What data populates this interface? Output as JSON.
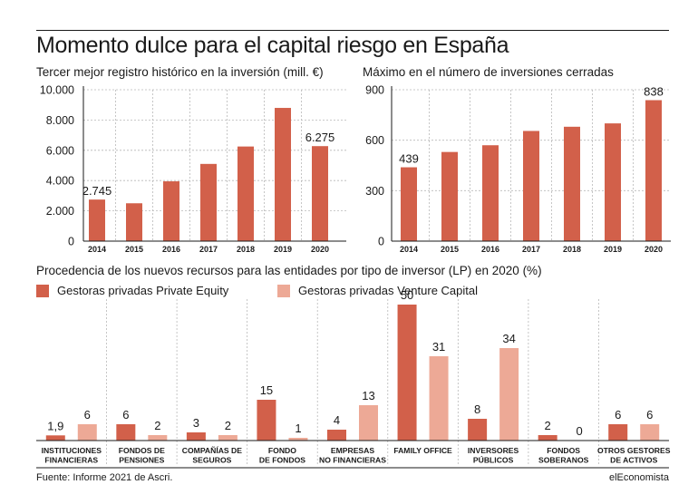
{
  "title": "Momento dulce para el capital riesgo en España",
  "source": "Fuente: Informe 2021 de Ascri.",
  "brand": "elEconomista",
  "colors": {
    "dark": "#d2604a",
    "light": "#eda996",
    "grid": "#b8b8b8",
    "text": "#1a1a1a"
  },
  "chart_data": [
    {
      "type": "bar",
      "title": "Tercer mejor registro histórico en la inversión (mill. €)",
      "categories": [
        "2014",
        "2015",
        "2016",
        "2017",
        "2018",
        "2019",
        "2020"
      ],
      "values": [
        2745,
        2500,
        3950,
        5100,
        6250,
        8800,
        6275
      ],
      "value_labels": [
        "2.745",
        "",
        "",
        "",
        "",
        "",
        "6.275"
      ],
      "ylim": [
        0,
        10000
      ],
      "yticks": [
        0,
        2000,
        4000,
        6000,
        8000,
        10000
      ],
      "ytick_labels": [
        "0",
        "2.000",
        "4.000",
        "6.000",
        "8.000",
        "10.000"
      ],
      "grid": true
    },
    {
      "type": "bar",
      "title": "Máximo en el número de inversiones cerradas",
      "categories": [
        "2014",
        "2015",
        "2016",
        "2017",
        "2018",
        "2019",
        "2020"
      ],
      "values": [
        439,
        530,
        570,
        655,
        680,
        700,
        838
      ],
      "value_labels": [
        "439",
        "",
        "",
        "",
        "",
        "",
        "838"
      ],
      "ylim": [
        0,
        900
      ],
      "yticks": [
        0,
        300,
        600,
        900
      ],
      "ytick_labels": [
        "0",
        "300",
        "600",
        "900"
      ],
      "grid": true
    },
    {
      "type": "bar",
      "title": "Procedencia de los nuevos recursos para las entidades por tipo de inversor (LP) en 2020 (%)",
      "legend_position": "top-left",
      "categories": [
        [
          "INSTITUCIONES",
          "FINANCIERAS"
        ],
        [
          "FONDOS DE",
          "PENSIONES"
        ],
        [
          "COMPAÑÍAS DE",
          "SEGUROS"
        ],
        [
          "FONDO",
          "DE FONDOS"
        ],
        [
          "EMPRESAS",
          "NO FINANCIERAS"
        ],
        [
          "FAMILY OFFICE"
        ],
        [
          "INVERSORES",
          "PÚBLICOS"
        ],
        [
          "FONDOS",
          "SOBERANOS"
        ],
        [
          "OTROS GESTORES",
          "DE ACTIVOS"
        ]
      ],
      "series": [
        {
          "name": "Gestoras privadas Private Equity",
          "color": "dark",
          "values": [
            1.9,
            6,
            3,
            15,
            4,
            50,
            8,
            2,
            6
          ],
          "labels": [
            "1,9",
            "6",
            "3",
            "15",
            "4",
            "50",
            "8",
            "2",
            "6"
          ]
        },
        {
          "name": "Gestoras privadas Venture Capital",
          "color": "light",
          "values": [
            6,
            2,
            2,
            1,
            13,
            31,
            34,
            0,
            6
          ],
          "labels": [
            "6",
            "2",
            "2",
            "1",
            "13",
            "31",
            "34",
            "0",
            "6"
          ]
        }
      ],
      "ylim": [
        0,
        50
      ]
    }
  ]
}
